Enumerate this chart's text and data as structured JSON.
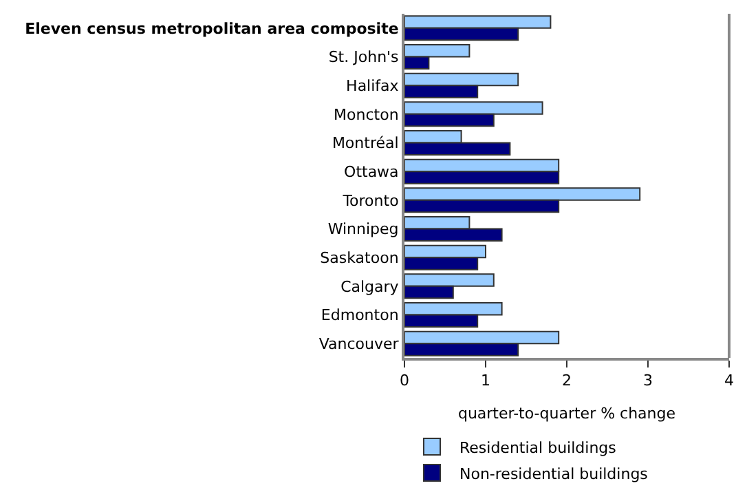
{
  "chart_data": {
    "type": "bar",
    "orientation": "horizontal",
    "categories": [
      "Eleven census metropolitan area composite",
      "St. John's",
      "Halifax",
      "Moncton",
      "Montréal",
      "Ottawa",
      "Toronto",
      "Winnipeg",
      "Saskatoon",
      "Calgary",
      "Edmonton",
      "Vancouver"
    ],
    "series": [
      {
        "name": "Residential buildings",
        "color": "#99ccff",
        "values": [
          1.8,
          0.8,
          1.4,
          1.7,
          0.7,
          1.9,
          2.9,
          0.8,
          1.0,
          1.1,
          1.2,
          1.9
        ]
      },
      {
        "name": "Non-residential buildings",
        "color": "#000080",
        "values": [
          1.4,
          0.3,
          0.9,
          1.1,
          1.3,
          1.9,
          1.9,
          1.2,
          0.9,
          0.6,
          0.9,
          1.4
        ]
      }
    ],
    "xlabel": "quarter-to-quarter % change",
    "xlim": [
      0,
      4
    ],
    "xticks": [
      0,
      1,
      2,
      3,
      4
    ],
    "grid": false,
    "legend": "bottom"
  }
}
